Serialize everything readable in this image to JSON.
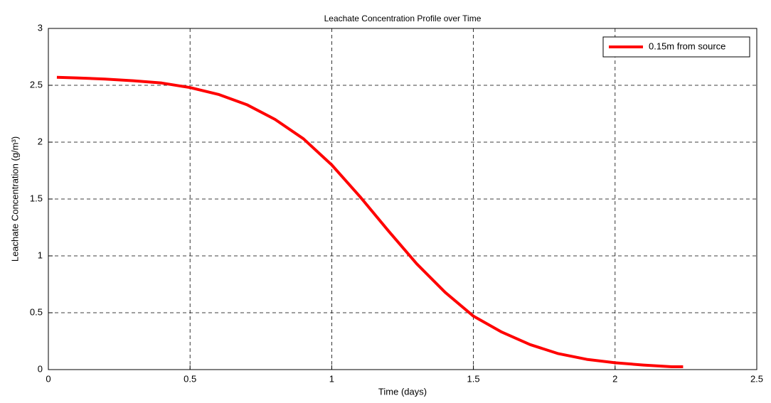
{
  "chart_data": {
    "type": "line",
    "title": "Leachate Concentration Profile over Time",
    "xlabel": "Time (days)",
    "ylabel": "Leachate Concentration (g/m³)",
    "x": [
      0.03,
      0.1,
      0.2,
      0.3,
      0.4,
      0.5,
      0.6,
      0.7,
      0.8,
      0.9,
      1.0,
      1.1,
      1.2,
      1.3,
      1.4,
      1.5,
      1.6,
      1.7,
      1.8,
      1.9,
      2.0,
      2.1,
      2.2,
      2.24
    ],
    "series": [
      {
        "name": "0.15m from source",
        "color": "#ff0000",
        "values": [
          2.57,
          2.565,
          2.555,
          2.54,
          2.52,
          2.48,
          2.42,
          2.33,
          2.2,
          2.03,
          1.8,
          1.52,
          1.22,
          0.93,
          0.68,
          0.47,
          0.33,
          0.22,
          0.14,
          0.09,
          0.06,
          0.04,
          0.025,
          0.025
        ]
      }
    ],
    "xlim": [
      0,
      2.5
    ],
    "ylim": [
      0,
      3
    ],
    "xticks": [
      0,
      0.5,
      1,
      1.5,
      2,
      2.5
    ],
    "yticks": [
      0,
      0.5,
      1,
      1.5,
      2,
      2.5,
      3
    ],
    "grid": true,
    "legend": "upper right"
  }
}
